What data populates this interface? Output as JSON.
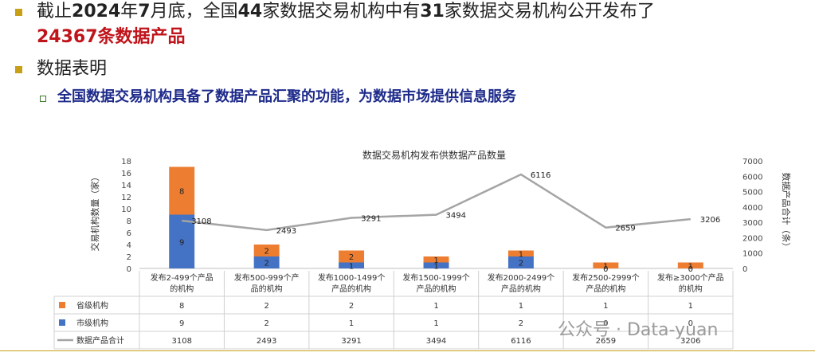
{
  "header": {
    "bullet1_text_a": "截止",
    "bullet1_text_b": "2024",
    "bullet1_text_c": "年",
    "bullet1_text_d": "7",
    "bullet1_text_e": "月底，全国",
    "bullet1_text_f": "44",
    "bullet1_text_g": "家数据交易机构中有",
    "bullet1_text_h": "31",
    "bullet1_text_i": "家数据交易机构公开发布了",
    "bullet1_line2": "24367条数据产品",
    "bullet2_text": "数据表明",
    "sub_bullet_text": "全国数据交易机构具备了数据产品汇聚的功能，为数据市场提供信息服务"
  },
  "colors": {
    "province": "#ed7d31",
    "city": "#4472c4",
    "total_line": "#a5a5a5",
    "bullet": "#c8a017"
  },
  "chart_data": {
    "type": "bar",
    "title": "数据交易机构发布供数据产品数量",
    "ylabel": "交易机构数量（家）",
    "y2label": "数据产品合计（条）",
    "ylim": [
      0,
      18
    ],
    "y2lim": [
      0,
      7000
    ],
    "yticks": [
      "0",
      "2",
      "4",
      "6",
      "8",
      "10",
      "12",
      "14",
      "16",
      "18"
    ],
    "y2ticks": [
      "0",
      "1000",
      "2000",
      "3000",
      "4000",
      "5000",
      "6000",
      "7000"
    ],
    "categories": [
      [
        "发布2-499个产品",
        "的机构"
      ],
      [
        "发布500-999个产",
        "品的机构"
      ],
      [
        "发布1000-1499个",
        "产品的机构"
      ],
      [
        "发布1500-1999个",
        "产品的机构"
      ],
      [
        "发布2000-2499个",
        "产品的机构"
      ],
      [
        "发布2500-2999个",
        "产品的机构"
      ],
      [
        "发布≥3000个产品",
        "的机构"
      ]
    ],
    "series": [
      {
        "name": "市级机构",
        "kind": "stacked-bar",
        "values": [
          9,
          2,
          1,
          1,
          2,
          0,
          0
        ]
      },
      {
        "name": "省级机构",
        "kind": "stacked-bar",
        "values": [
          8,
          2,
          2,
          1,
          1,
          1,
          1
        ]
      },
      {
        "name": "数据产品合计",
        "kind": "line",
        "axis": "right",
        "values": [
          3108,
          2493,
          3291,
          3494,
          6116,
          2659,
          3206
        ]
      }
    ],
    "table_rows": [
      {
        "name": "省级机构",
        "values": [
          "8",
          "2",
          "2",
          "1",
          "1",
          "1",
          "1"
        ]
      },
      {
        "name": "市级机构",
        "values": [
          "9",
          "2",
          "1",
          "1",
          "2",
          "0",
          "0"
        ]
      },
      {
        "name": "数据产品合计",
        "values": [
          "3108",
          "2493",
          "3291",
          "3494",
          "6116",
          "2659",
          "3206"
        ]
      }
    ],
    "grid": false
  },
  "watermark": "公众号 · Data-yuan"
}
